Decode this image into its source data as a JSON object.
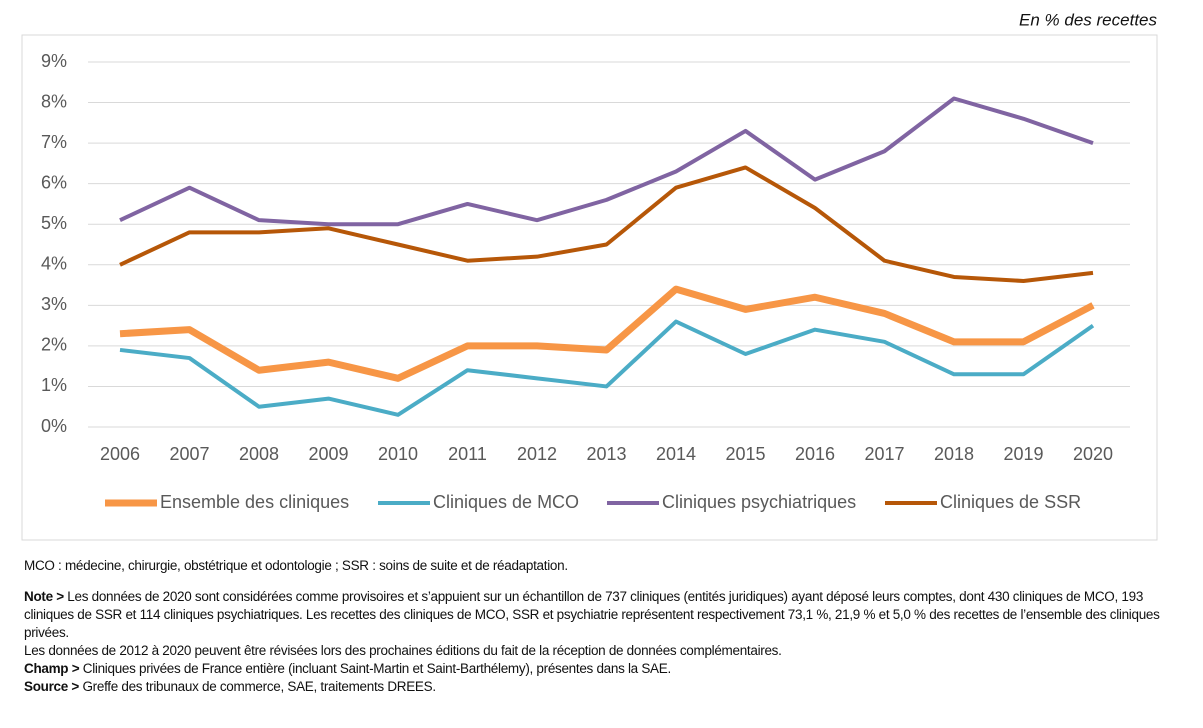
{
  "chart_data": {
    "type": "line",
    "subtitle": "En % des recettes",
    "categories": [
      "2006",
      "2007",
      "2008",
      "2009",
      "2010",
      "2011",
      "2012",
      "2013",
      "2014",
      "2015",
      "2016",
      "2017",
      "2018",
      "2019",
      "2020"
    ],
    "ylim": [
      0,
      9
    ],
    "yticks": [
      {
        "value": 0,
        "label": "0%"
      },
      {
        "value": 1,
        "label": "1%"
      },
      {
        "value": 2,
        "label": "2%"
      },
      {
        "value": 3,
        "label": "3%"
      },
      {
        "value": 4,
        "label": "4%"
      },
      {
        "value": 5,
        "label": "5%"
      },
      {
        "value": 6,
        "label": "6%"
      },
      {
        "value": 7,
        "label": "7%"
      },
      {
        "value": 8,
        "label": "8%"
      },
      {
        "value": 9,
        "label": "9%"
      }
    ],
    "grid": true,
    "legend": "bottom",
    "series": [
      {
        "name": "Ensemble des cliniques",
        "color": "#f79646",
        "values": [
          2.3,
          2.4,
          1.4,
          1.6,
          1.2,
          2.0,
          2.0,
          1.9,
          3.4,
          2.9,
          3.2,
          2.8,
          2.1,
          2.1,
          3.0
        ]
      },
      {
        "name": "Cliniques de MCO",
        "color": "#4bacc6",
        "values": [
          1.9,
          1.7,
          0.5,
          0.7,
          0.3,
          1.4,
          1.2,
          1.0,
          2.6,
          1.8,
          2.4,
          2.1,
          1.3,
          1.3,
          2.5
        ]
      },
      {
        "name": "Cliniques psychiatriques",
        "color": "#8064a2",
        "values": [
          5.1,
          5.9,
          5.1,
          5.0,
          5.0,
          5.5,
          5.1,
          5.6,
          6.3,
          7.3,
          6.1,
          6.8,
          8.1,
          7.6,
          7.0
        ]
      },
      {
        "name": "Cliniques de SSR",
        "color": "#b65708",
        "values": [
          4.0,
          4.8,
          4.8,
          4.9,
          4.5,
          4.1,
          4.2,
          4.5,
          5.9,
          6.4,
          5.4,
          4.1,
          3.7,
          3.6,
          3.8
        ]
      }
    ]
  },
  "notes": {
    "abbreviations": "MCO : médecine, chirurgie, obstétrique et odontologie ; SSR : soins de suite et de réadaptation.",
    "note": {
      "label": "Note >",
      "text": "Les données de 2020 sont considérées comme provisoires et s’appuient sur un échantillon de 737 cliniques (entités juridiques) ayant déposé leurs comptes, dont 430 cliniques de MCO, 193 cliniques de SSR et 114 cliniques psychiatriques. Les recettes des cliniques de MCO, SSR et psychiatrie représentent respectivement 73,1 %, 21,9 % et 5,0 % des recettes de l’ensemble des cliniques privées."
    },
    "revision": "Les données de 2012 à 2020 peuvent être révisées lors des prochaines éditions du fait de la réception de données complémentaires.",
    "champ": {
      "label": "Champ >",
      "text": "Cliniques privées de France entière (incluant Saint-Martin et Saint-Barthélemy), présentes dans la SAE."
    },
    "source": {
      "label": "Source >",
      "text": "Greffe des tribunaux de commerce, SAE, traitements DREES."
    }
  }
}
